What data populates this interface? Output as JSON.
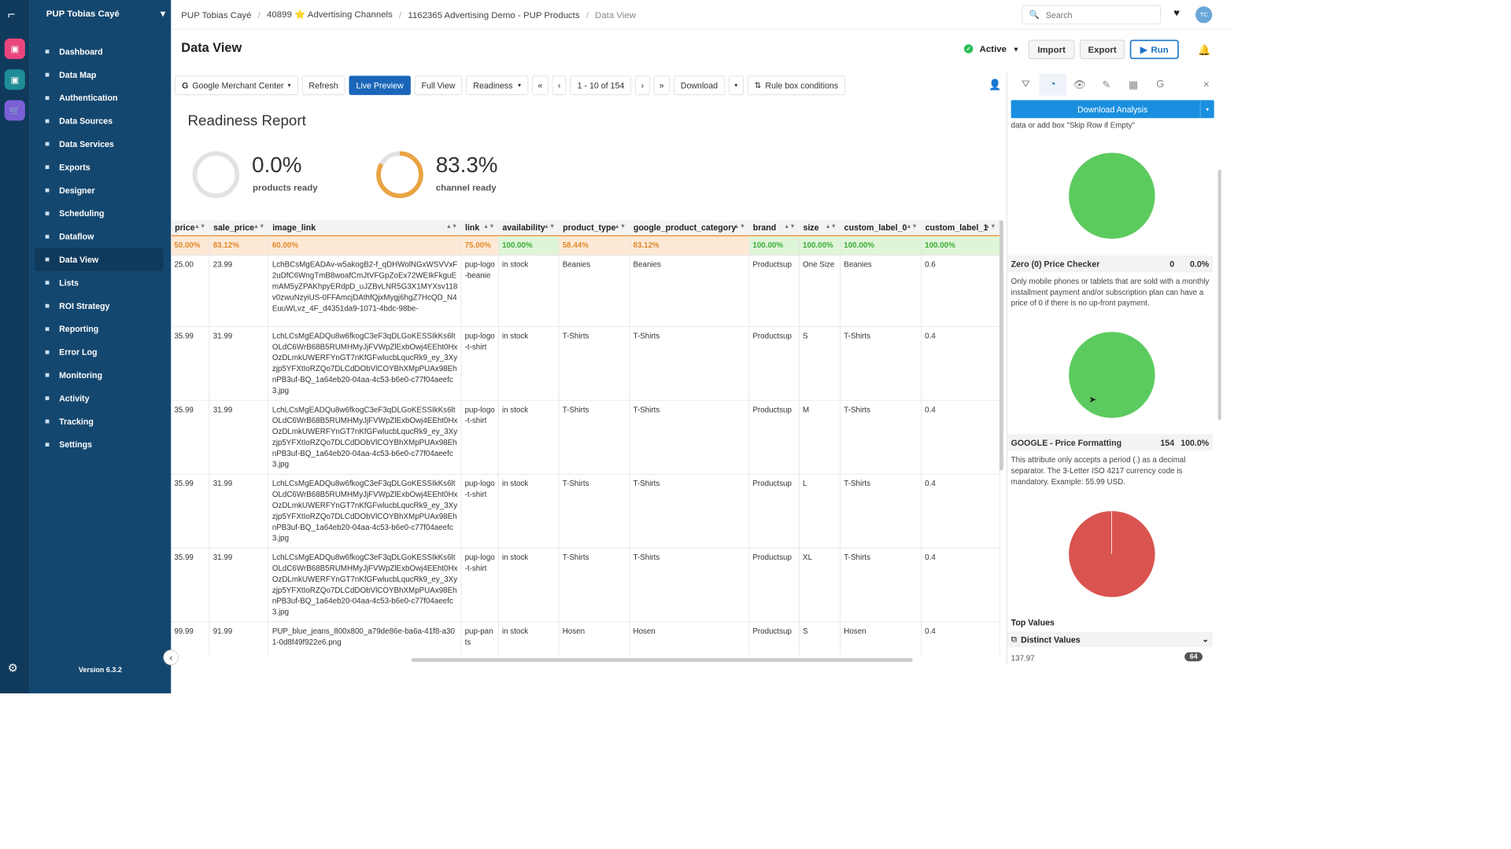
{
  "app": {
    "account": "PUP Tobias Cayé",
    "version": "Version 6.3.2",
    "avatar": "TC"
  },
  "breadcrumb": [
    "PUP Tobias Cayé",
    "40899 ⭐ Advertising Channels",
    "1162365 Advertising Demo - PUP Products",
    "Data View"
  ],
  "search": {
    "placeholder": "Search"
  },
  "nav": [
    {
      "label": "Dashboard",
      "icon": "dashboard-icon"
    },
    {
      "label": "Data Map",
      "icon": "data-map-icon"
    },
    {
      "label": "Authentication",
      "icon": "lock-icon"
    },
    {
      "label": "Data Sources",
      "icon": "cloud-icon"
    },
    {
      "label": "Data Services",
      "icon": "services-icon"
    },
    {
      "label": "Exports",
      "icon": "upload-icon"
    },
    {
      "label": "Designer",
      "icon": "brush-icon"
    },
    {
      "label": "Scheduling",
      "icon": "calendar-icon"
    },
    {
      "label": "Dataflow",
      "icon": "flow-icon"
    },
    {
      "label": "Data View",
      "icon": "table-icon",
      "active": true
    },
    {
      "label": "Lists",
      "icon": "list-icon"
    },
    {
      "label": "ROI Strategy",
      "icon": "dollar-icon"
    },
    {
      "label": "Reporting",
      "icon": "pie-icon"
    },
    {
      "label": "Error Log",
      "icon": "error-icon"
    },
    {
      "label": "Monitoring",
      "icon": "bell-icon"
    },
    {
      "label": "Activity",
      "icon": "activity-icon"
    },
    {
      "label": "Tracking",
      "icon": "flag-icon"
    },
    {
      "label": "Settings",
      "icon": "gear-icon"
    }
  ],
  "header": {
    "title": "Data View",
    "status": "Active",
    "import": "Import",
    "export": "Export",
    "run": "Run"
  },
  "toolbar": {
    "channel": "Google Merchant Center",
    "refresh": "Refresh",
    "live": "Live Preview",
    "full": "Full View",
    "readiness": "Readiness",
    "first": "«",
    "prev": "‹",
    "range": "1 - 10 of 154",
    "next": "›",
    "last": "»",
    "download": "Download",
    "rules": "Rule box conditions"
  },
  "readiness": {
    "title": "Readiness Report",
    "products_value": "0.0%",
    "products_label": "products ready",
    "products_fraction": 0.0,
    "channel_value": "83.3%",
    "channel_label": "channel ready",
    "channel_fraction": 0.833
  },
  "table": {
    "columns": [
      "price",
      "sale_price",
      "image_link",
      "link",
      "availability",
      "product_type",
      "google_product_category",
      "brand",
      "size",
      "custom_label_0",
      "custom_label_1"
    ],
    "percents": [
      "50.00%",
      "83.12%",
      "60.00%",
      "75.00%",
      "100.00%",
      "58.44%",
      "83.12%",
      "100.00%",
      "100.00%",
      "100.00%",
      "100.00%"
    ],
    "percent_status": [
      "orange",
      "orange",
      "orange",
      "orange",
      "green",
      "orange",
      "orange",
      "green",
      "green",
      "green",
      "green"
    ],
    "rows": [
      [
        "25.00",
        "23.99",
        "LchBCsMgEADAv-w5akogB2-f_qDHWolNGxWSVVxF2uDfC6WngTmB8woafCmJtVFGpZoEx72WEIkFkguEmAM5yZPAKhpyERdpD_uJZBvLNR5G3X1MYXsv118v0zwuNzyiUS-0FFAmcjDAthfQjxMygj6hgZ7HcQD_N4EuuWLvz_4F_d4351da9-1071-4bdc-98be-",
        "pup-logo-beanie",
        "in stock",
        "Beanies",
        "Beanies",
        "Productsup",
        "One Size",
        "Beanies",
        "0.6"
      ],
      [
        "35.99",
        "31.99",
        "LchLCsMgEADQu8w6fkogC3eF3qDLGoKESSIkKs6ltOLdC6WrB68B5RUMHMyJjFVWpZlExbOwj4EEht0HxOzDLmkUWERFYnGT7nKfGFwlucbLqucRk9_ey_3Xyzjp5YFXtIoRZQo7DLCdDObVlCOYBhXMpPUAx98EhnPB3uf-BQ_1a64eb20-04aa-4c53-b6e0-c77f04aeefc3.jpg",
        "pup-logo-t-shirt",
        "in stock",
        "T-Shirts",
        "T-Shirts",
        "Productsup",
        "S",
        "T-Shirts",
        "0.4"
      ],
      [
        "35.99",
        "31.99",
        "LchLCsMgEADQu8w6fkogC3eF3qDLGoKESSIkKs6ltOLdC6WrB68B5RUMHMyJjFVWpZlExbOwj4EEht0HxOzDLmkUWERFYnGT7nKfGFwlucbLqucRk9_ey_3Xyzjp5YFXtIoRZQo7DLCdDObVlCOYBhXMpPUAx98EhnPB3uf-BQ_1a64eb20-04aa-4c53-b6e0-c77f04aeefc3.jpg",
        "pup-logo-t-shirt",
        "in stock",
        "T-Shirts",
        "T-Shirts",
        "Productsup",
        "M",
        "T-Shirts",
        "0.4"
      ],
      [
        "35.99",
        "31.99",
        "LchLCsMgEADQu8w6fkogC3eF3qDLGoKESSIkKs6ltOLdC6WrB68B5RUMHMyJjFVWpZlExbOwj4EEht0HxOzDLmkUWERFYnGT7nKfGFwlucbLqucRk9_ey_3Xyzjp5YFXtIoRZQo7DLCdDObVlCOYBhXMpPUAx98EhnPB3uf-BQ_1a64eb20-04aa-4c53-b6e0-c77f04aeefc3.jpg",
        "pup-logo-t-shirt",
        "in stock",
        "T-Shirts",
        "T-Shirts",
        "Productsup",
        "L",
        "T-Shirts",
        "0.4"
      ],
      [
        "35.99",
        "31.99",
        "LchLCsMgEADQu8w6fkogC3eF3qDLGoKESSIkKs6ltOLdC6WrB68B5RUMHMyJjFVWpZlExbOwj4EEht0HxOzDLmkUWERFYnGT7nKfGFwlucbLqucRk9_ey_3Xyzjp5YFXtIoRZQo7DLCdDObVlCOYBhXMpPUAx98EhnPB3uf-BQ_1a64eb20-04aa-4c53-b6e0-c77f04aeefc3.jpg",
        "pup-logo-t-shirt",
        "in stock",
        "T-Shirts",
        "T-Shirts",
        "Productsup",
        "XL",
        "T-Shirts",
        "0.4"
      ],
      [
        "99.99",
        "91.99",
        "PUP_blue_jeans_800x800_a79de86e-ba6a-41f8-a301-0d8f49f922e6.png",
        "pup-pants",
        "in stock",
        "Hosen",
        "Hosen",
        "Productsup",
        "S",
        "Hosen",
        "0.4"
      ]
    ]
  },
  "panel": {
    "download": "Download Analysis",
    "note": "data or add box \"Skip Row if Empty\"",
    "checks": [
      {
        "title": "Zero (0) Price Checker",
        "count": "0",
        "pct": "0.0%",
        "desc": "Only mobile phones or tablets that are sold with a monthly installment payment and/or subscription plan can have a price of 0 if there is no up-front payment.",
        "color": "#5ccb5f"
      },
      {
        "title": "GOOGLE - Price Formatting",
        "count": "154",
        "pct": "100.0%",
        "desc": "This attribute only accepts a period (.) as a decimal separator. The 3-Letter ISO 4217 currency code is mandatory. Example: 55.99 USD.",
        "color": "#5ccb5f"
      }
    ],
    "last_pie_color": "#d9534f",
    "top_values": "Top Values",
    "distinct": "Distinct Values",
    "distinct_first": "137.97",
    "distinct_first_count": "64"
  },
  "colors": {
    "sidebar": "#14476f",
    "rail": "#0f3a5c",
    "accent": "#1a66b8",
    "ok": "#5ccb5f",
    "fail": "#d9534f",
    "gauge": "#e9a443"
  }
}
